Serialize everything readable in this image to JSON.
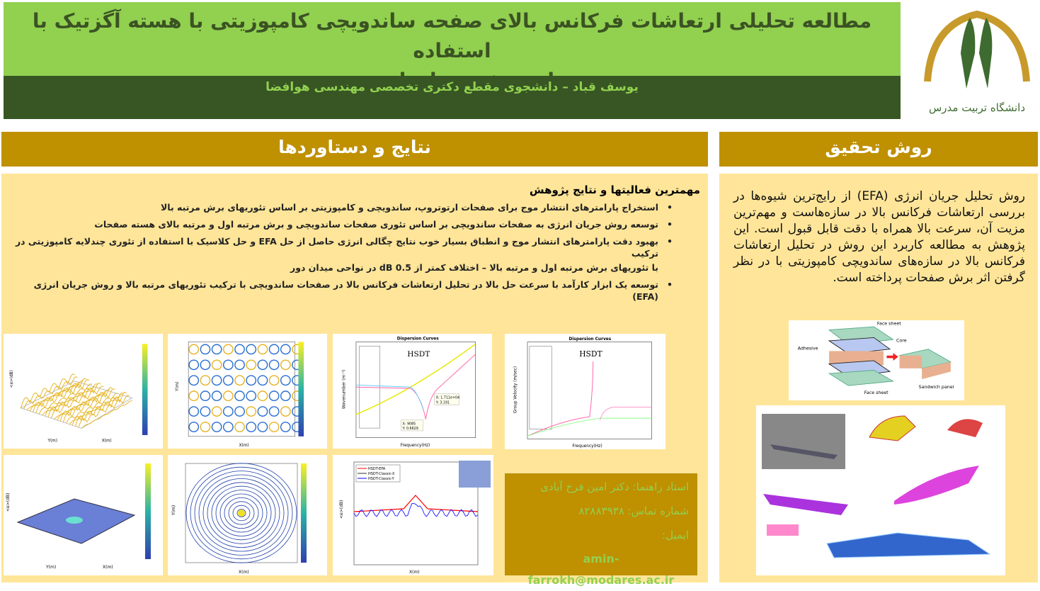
{
  "header": {
    "title_line1": "مطالعه تحلیلی ارتعاشات فرکانس بالای صفحه ساندویچی کامپوزیتی با هسته آگزتیک با استفاده",
    "title_line2": "از روش جریان انرژی",
    "author": "یوسف قباد – دانشجوی مقطع دکتری تخصصی مهندسی هوافضا",
    "logo_text": "دانشگاه تربیت مدرس"
  },
  "results": {
    "section_title": "نتایج و دستاوردها",
    "heading": "مهمترین فعالیتها و نتایج پژوهش",
    "bullet": "•",
    "items": [
      "استخراج پارامترهای انتشار موج برای صفحات ارتوتروپ، ساندویچی و کامپوزیتی بر اساس تئوریهای برش مرتبه بالا",
      "توسعه روش جریان انرژی به صفحات ساندویچی بر اساس تئوری صفحات ساندویچی و برش مرتبه اول و مرتبه بالای هسته صفحات",
      "بهبود دقت پارامترهای انتشار موج و انطباق بسیار خوب نتایج چگالی انرژی حاصل از حل EFA و حل کلاسیک با استفاده از تئوری چندلایه کامپوزیتی در ترکیب",
      "با تئوریهای برش مرتبه اول و مرتبه بالا – اختلاف کمتر از 0.5 dB در نواحی میدان دور",
      "توسعه یک ابزار کارآمد با سرعت حل بالا در تحلیل ارتعاشات فرکانس بالا در صفحات ساندویچی با ترکیب تئوریهای مرتبه بالا و روش جریان انرژی (EFA)"
    ],
    "figures": {
      "z_label": "<e>(dB)",
      "x_label": "X(m)",
      "y_label": "Y(m)",
      "dispersion_title": "Dispersion Curves",
      "hsdt": "HSDT",
      "freq_label": "Frequency(Hz)",
      "wavenumber_label": "Wavenumber (m⁻¹)",
      "group_velocity_label": "Group Velocity (m/sec)",
      "tip1": [
        "X: 9085",
        "Y: 0.6629"
      ],
      "tip2": [
        "X: 1.711e+04",
        "Y: 3.191"
      ],
      "legend": [
        "HSDT-EFA",
        "HSDT-Classic-X",
        "HSDT-Classic-Y"
      ]
    }
  },
  "contact": {
    "advisor": "استاد راهنما: دکتر امین فرخ آبادی",
    "phone": "شماره تماس: ۸۲۸۸۳۹۳۸",
    "email_label": "ایمیل:",
    "email": "amin-farrokh@modares.ac.ir"
  },
  "method": {
    "section_title": "روش تحقیق",
    "text": "روش تحلیل جریان انرژی (EFA) از رایج‌ترین شیوه‌ها در بررسی ارتعاشات فرکانس بالا در سازه‌هاست و مهم‌ترین مزیت آن، سرعت بالا همراه با دقت قابل قبول است. این پژوهش به مطالعه کاربرد این روش در تحلیل ارتعاشات فرکانس بالا در سازه‌های ساندویچی کامپوزیتی با در نظر گرفتن اثر برش صفحات پرداخته است.",
    "sandwich": {
      "face_top": "Face sheet",
      "core": "Core",
      "adhesive": "Adhesive",
      "face_bottom": "Face sheet",
      "panel": "Sandwich panel"
    }
  },
  "colors": {
    "title_green": "#92d050",
    "dark_green": "#375623",
    "gold": "#bf9000",
    "panel": "#ffe599"
  }
}
